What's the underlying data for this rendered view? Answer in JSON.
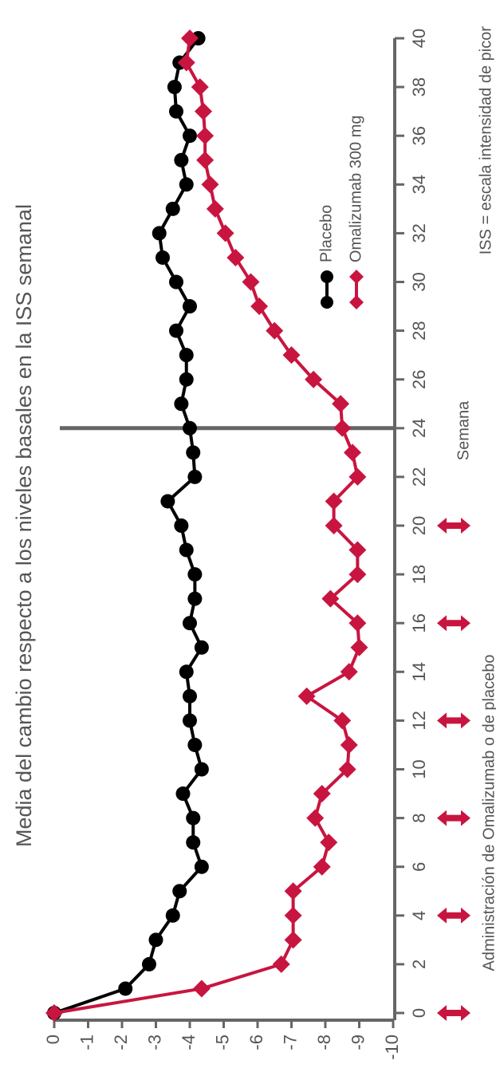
{
  "chart_data": {
    "type": "line",
    "title": "Media del cambio respecto a los niveles basales en la ISS semanal",
    "x_label": "Semana",
    "note": "ISS = escala intensidad de picor",
    "dosing_label": "Administración de Omalizumab o de placebo",
    "x": [
      0,
      1,
      2,
      3,
      4,
      5,
      6,
      7,
      8,
      9,
      10,
      11,
      12,
      13,
      14,
      15,
      16,
      17,
      18,
      19,
      20,
      21,
      22,
      23,
      24,
      25,
      26,
      27,
      28,
      29,
      30,
      31,
      32,
      33,
      34,
      35,
      36,
      37,
      38,
      39,
      40
    ],
    "series": [
      {
        "name": "Placebo",
        "color": "#000000",
        "marker": "circle",
        "values": [
          0,
          -2.1,
          -2.8,
          -3.0,
          -3.5,
          -3.7,
          -4.35,
          -4.1,
          -4.1,
          -3.8,
          -4.35,
          -4.15,
          -4.0,
          -4.0,
          -3.9,
          -4.35,
          -4.0,
          -4.15,
          -4.15,
          -3.9,
          -3.75,
          -3.35,
          -4.15,
          -4.1,
          -4.0,
          -3.75,
          -3.9,
          -3.9,
          -3.6,
          -4.0,
          -3.6,
          -3.2,
          -3.1,
          -3.5,
          -3.9,
          -3.75,
          -4.0,
          -3.6,
          -3.55,
          -3.7,
          -4.25
        ]
      },
      {
        "name": "Omalizumab 300 mg",
        "color": "#c8153f",
        "marker": "diamond",
        "values": [
          0,
          -4.35,
          -6.7,
          -7.05,
          -7.05,
          -7.05,
          -7.9,
          -8.1,
          -7.7,
          -7.9,
          -8.65,
          -8.7,
          -8.5,
          -7.45,
          -8.7,
          -9.0,
          -8.95,
          -8.15,
          -8.95,
          -8.95,
          -8.25,
          -8.25,
          -8.95,
          -8.8,
          -8.5,
          -8.45,
          -7.65,
          -7.0,
          -6.5,
          -6.05,
          -5.8,
          -5.35,
          -5.05,
          -4.75,
          -4.6,
          -4.45,
          -4.45,
          -4.4,
          -4.3,
          -3.9,
          -4.0
        ]
      }
    ],
    "xlim": [
      0,
      40
    ],
    "xticks": [
      0,
      2,
      4,
      6,
      8,
      10,
      12,
      14,
      16,
      18,
      20,
      22,
      24,
      26,
      28,
      30,
      32,
      34,
      36,
      38,
      40
    ],
    "ylim": [
      0,
      -10
    ],
    "yticks": [
      0,
      -1,
      -2,
      -3,
      -4,
      -5,
      -6,
      -7,
      -8,
      -9,
      -10
    ],
    "vline": 24,
    "dosing_weeks": [
      0,
      4,
      8,
      12,
      16,
      20
    ],
    "dosing_color": "#c8153f"
  }
}
